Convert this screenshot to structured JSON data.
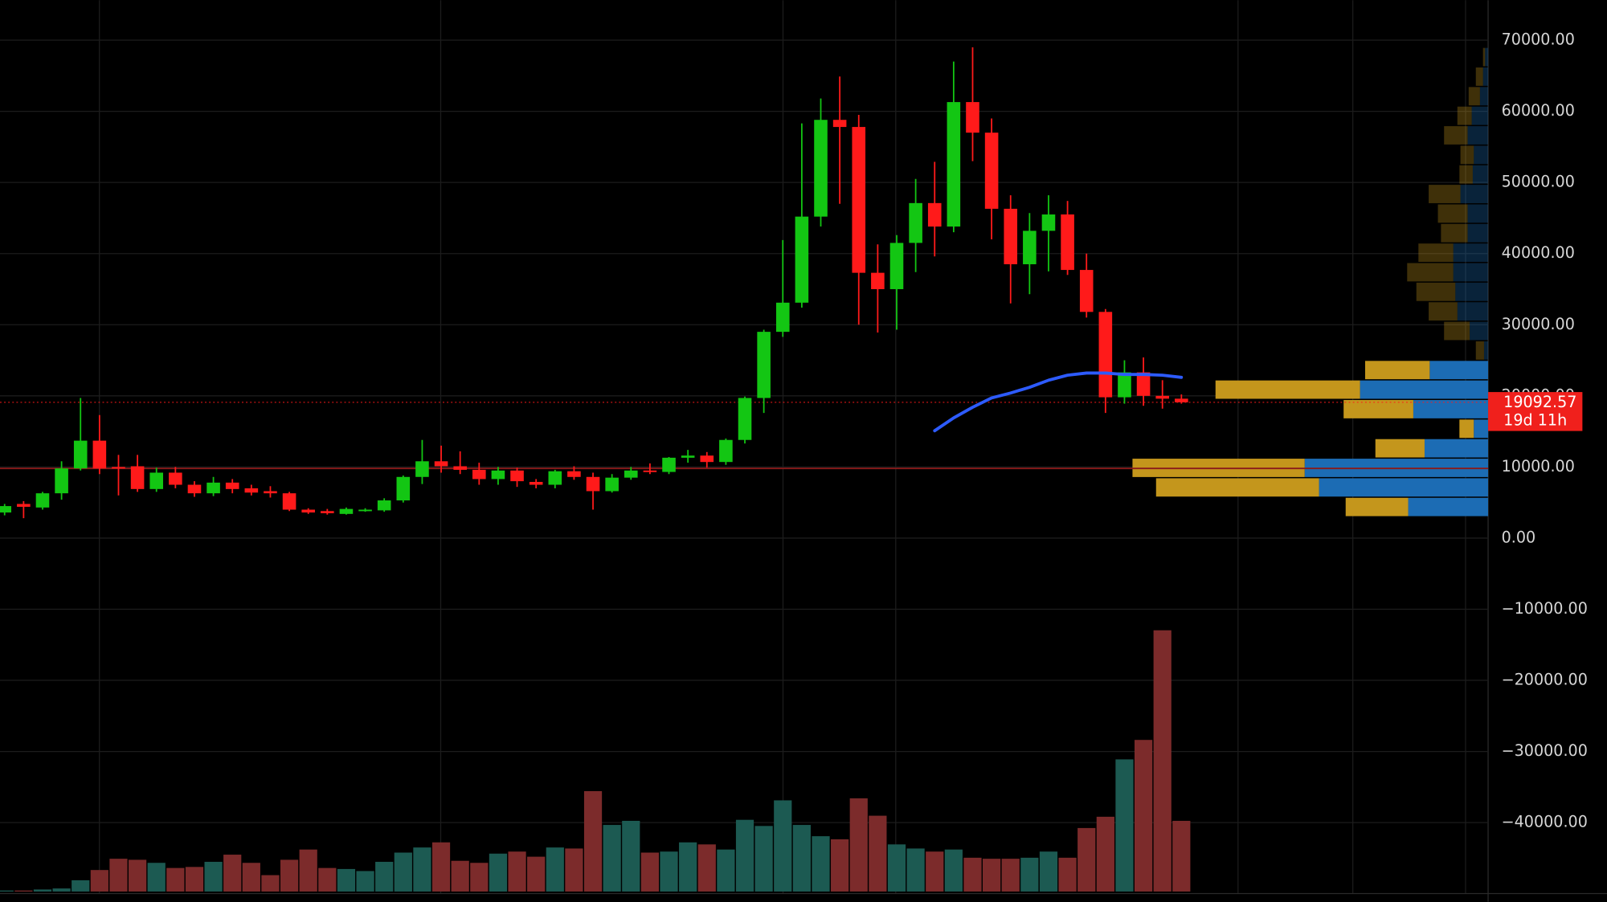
{
  "chart_data": {
    "type": "candlestick",
    "ylim": [
      -51130,
      75620
    ],
    "yticks": [
      {
        "value": 70000,
        "label": "70000.00"
      },
      {
        "value": 60000,
        "label": "60000.00"
      },
      {
        "value": 50000,
        "label": "50000.00"
      },
      {
        "value": 40000,
        "label": "40000.00"
      },
      {
        "value": 30000,
        "label": "30000.00"
      },
      {
        "value": 20000,
        "label": "20000.00"
      },
      {
        "value": 10000,
        "label": "10000.00"
      },
      {
        "value": 0,
        "label": "0.00"
      },
      {
        "value": -10000,
        "label": "−10000.00"
      },
      {
        "value": -20000,
        "label": "−20000.00"
      },
      {
        "value": -30000,
        "label": "−30000.00"
      },
      {
        "value": -40000,
        "label": "−40000.00"
      }
    ],
    "grid": true,
    "up_color": "#13c613",
    "down_color": "#ff1a1a",
    "volume_up_color": "#1c5a52",
    "volume_down_color": "#7c2b2b",
    "open": [
      3600,
      4800,
      4300,
      6300,
      9800,
      13700,
      10000,
      10100,
      6900,
      9200,
      7500,
      6300,
      7800,
      7000,
      6600,
      6300,
      4000,
      3800,
      3400,
      3800,
      3900,
      5300,
      8600,
      10800,
      10100,
      9600,
      8300,
      9500,
      7900,
      7500,
      9400,
      8600,
      6600,
      8500,
      9500,
      9300,
      11300,
      11600,
      10700,
      13800,
      19700,
      29000,
      33100,
      45200,
      58800,
      57800,
      37300,
      35000,
      41500,
      47100,
      43800,
      61300,
      57000,
      46300,
      38500,
      43200,
      45500,
      37700,
      31800,
      19800,
      23300,
      20000,
      19600
    ],
    "high": [
      4800,
      5200,
      6500,
      10800,
      19700,
      17300,
      11700,
      11700,
      9900,
      10000,
      8000,
      8600,
      8300,
      7500,
      7300,
      6500,
      4200,
      4100,
      4300,
      4200,
      5600,
      8800,
      13800,
      13000,
      12200,
      10600,
      10000,
      9900,
      8300,
      9600,
      10100,
      9200,
      9000,
      10000,
      10500,
      11400,
      12400,
      12100,
      14000,
      19900,
      29300,
      41900,
      58300,
      61800,
      64900,
      59500,
      41300,
      42600,
      50500,
      52900,
      67000,
      69000,
      59000,
      48200,
      45700,
      48200,
      47400,
      40000,
      32200,
      25000,
      25400,
      22200,
      20200
    ],
    "low": [
      3200,
      2800,
      4000,
      5400,
      9500,
      9000,
      6000,
      6500,
      6500,
      7000,
      5800,
      5900,
      6300,
      6000,
      5700,
      3800,
      3400,
      3300,
      3300,
      3700,
      3700,
      5000,
      7600,
      9200,
      9000,
      7500,
      7500,
      7200,
      7000,
      7000,
      8200,
      4000,
      6400,
      8200,
      9000,
      9000,
      10600,
      9900,
      10300,
      13300,
      17600,
      28300,
      32400,
      43800,
      47000,
      30000,
      28900,
      29300,
      37400,
      39600,
      43000,
      53000,
      42000,
      33000,
      34300,
      37500,
      37000,
      31000,
      17600,
      18900,
      18600,
      18200,
      18900
    ],
    "close": [
      4500,
      4400,
      6300,
      9800,
      13700,
      9800,
      9900,
      6900,
      9200,
      7500,
      6300,
      7800,
      6900,
      6400,
      6300,
      4000,
      3600,
      3500,
      4100,
      4000,
      5300,
      8600,
      10800,
      10100,
      9600,
      8300,
      9500,
      8000,
      7500,
      9400,
      8600,
      6600,
      8500,
      9500,
      9300,
      11300,
      11600,
      10700,
      13800,
      19700,
      29000,
      33100,
      45200,
      58800,
      57800,
      37300,
      35000,
      41500,
      47100,
      43800,
      61300,
      57000,
      46300,
      38500,
      43200,
      45500,
      37700,
      31800,
      19800,
      23300,
      20000,
      19600,
      19092.57
    ],
    "volume": [
      1,
      1,
      2,
      3,
      11,
      21,
      32,
      31,
      28,
      23,
      24,
      29,
      36,
      28,
      16,
      31,
      41,
      23,
      22,
      20,
      29,
      38,
      43,
      48,
      30,
      28,
      37,
      39,
      34,
      43,
      42,
      98,
      65,
      69,
      38,
      39,
      48,
      46,
      41,
      70,
      64,
      89,
      65,
      54,
      51,
      91,
      74,
      46,
      42,
      39,
      41,
      33,
      32,
      32,
      33,
      39,
      33,
      62,
      73,
      129,
      148,
      255,
      69
    ],
    "ma": {
      "color": "#2d5bff",
      "values": [
        null,
        null,
        null,
        null,
        null,
        null,
        null,
        null,
        null,
        null,
        null,
        null,
        null,
        null,
        null,
        null,
        null,
        null,
        null,
        null,
        null,
        null,
        null,
        null,
        null,
        null,
        null,
        null,
        null,
        null,
        null,
        null,
        null,
        null,
        null,
        null,
        null,
        null,
        null,
        null,
        null,
        null,
        null,
        null,
        null,
        null,
        null,
        null,
        null,
        15100,
        16900,
        18400,
        19700,
        20400,
        21200,
        22200,
        22900,
        23200,
        23200,
        23000,
        23000,
        22900,
        22600
      ]
    },
    "level": {
      "value": 9800,
      "color": "#8a1a1a"
    },
    "countdown": "19d 11h",
    "profile": {
      "bins": [
        3000,
        5750,
        8500,
        11250,
        14000,
        16750,
        19500,
        22250,
        25000,
        27750,
        30500,
        33250,
        36000,
        38750,
        41500,
        44250,
        47000,
        49750,
        52500,
        55250,
        58000,
        60750,
        63500,
        66250,
        69000
      ],
      "up": [
        78,
        165,
        179,
        62,
        14,
        73,
        125,
        57,
        4,
        18,
        30,
        32,
        34,
        34,
        20,
        20,
        27,
        15,
        14,
        20,
        16,
        8,
        5,
        3
      ],
      "down": [
        61,
        159,
        168,
        48,
        14,
        68,
        141,
        63,
        8,
        25,
        28,
        38,
        45,
        34,
        26,
        29,
        31,
        13,
        13,
        23,
        14,
        11,
        7,
        2
      ],
      "up_color": "#1c6cb4",
      "down_color": "#c4961c",
      "value_area": [
        3000,
        25000
      ]
    }
  }
}
